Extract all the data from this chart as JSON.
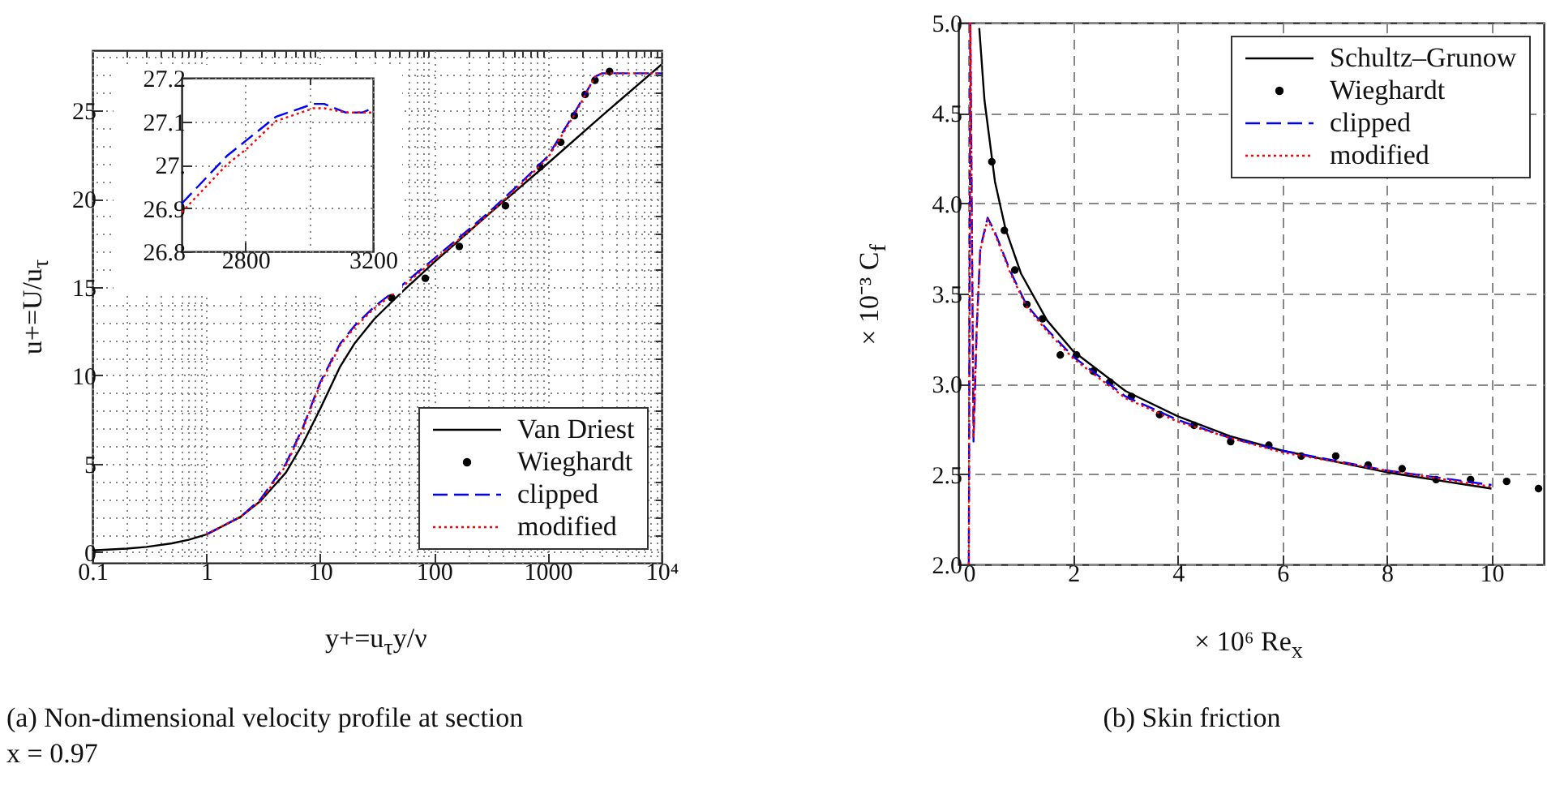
{
  "chart_data": [
    {
      "type": "line",
      "title": "(a) Non-dimensional velocity profile at section x = 0.97",
      "xlabel": "y+=u$_{τ}$y/ν",
      "ylabel": "u+=U/u$_{τ}$",
      "log": "x",
      "xlim": [
        0.1,
        10000
      ],
      "ylim": [
        -0.6,
        28.4
      ],
      "xticks": [
        0.1,
        {
          "value": 0.2,
          "label": null
        },
        {
          "value": 0.3,
          "label": null
        },
        {
          "value": 0.4,
          "label": null
        },
        {
          "value": 0.5,
          "label": null
        },
        {
          "value": 0.6,
          "label": null
        },
        {
          "value": 0.7,
          "label": null
        },
        {
          "value": 0.8,
          "label": null
        },
        {
          "value": 0.9,
          "label": null
        },
        1,
        {
          "value": 2,
          "label": null
        },
        {
          "value": 3,
          "label": null
        },
        {
          "value": 4,
          "label": null
        },
        {
          "value": 5,
          "label": null
        },
        {
          "value": 6,
          "label": null
        },
        {
          "value": 7,
          "label": null
        },
        {
          "value": 8,
          "label": null
        },
        {
          "value": 9,
          "label": null
        },
        10,
        {
          "value": 20,
          "label": null
        },
        {
          "value": 30,
          "label": null
        },
        {
          "value": 40,
          "label": null
        },
        {
          "value": 50,
          "label": null
        },
        {
          "value": 60,
          "label": null
        },
        {
          "value": 70,
          "label": null
        },
        {
          "value": 80,
          "label": null
        },
        {
          "value": 90,
          "label": null
        },
        100,
        {
          "value": 200,
          "label": null
        },
        {
          "value": 300,
          "label": null
        },
        {
          "value": 400,
          "label": null
        },
        {
          "value": 500,
          "label": null
        },
        {
          "value": 600,
          "label": null
        },
        {
          "value": 700,
          "label": null
        },
        {
          "value": 800,
          "label": null
        },
        {
          "value": 900,
          "label": null
        },
        1000,
        {
          "value": 2000,
          "label": null
        },
        {
          "value": 3000,
          "label": null
        },
        {
          "value": 4000,
          "label": null
        },
        {
          "value": 5000,
          "label": null
        },
        {
          "value": 6000,
          "label": null
        },
        {
          "value": 7000,
          "label": null
        },
        {
          "value": 8000,
          "label": null
        },
        {
          "value": 9000,
          "label": null
        },
        {
          "value": 10000,
          "label": "10⁴"
        }
      ],
      "yticks": [
        0,
        {
          "value": 1,
          "label": null
        },
        {
          "value": 2,
          "label": null
        },
        {
          "value": 3,
          "label": null
        },
        {
          "value": 4,
          "label": null
        },
        5,
        {
          "value": 6,
          "label": null
        },
        {
          "value": 7,
          "label": null
        },
        {
          "value": 8,
          "label": null
        },
        {
          "value": 9,
          "label": null
        },
        10,
        {
          "value": 11,
          "label": null
        },
        {
          "value": 12,
          "label": null
        },
        {
          "value": 13,
          "label": null
        },
        {
          "value": 14,
          "label": null
        },
        15,
        {
          "value": 16,
          "label": null
        },
        {
          "value": 17,
          "label": null
        },
        {
          "value": 18,
          "label": null
        },
        {
          "value": 19,
          "label": null
        },
        20,
        {
          "value": 21,
          "label": null
        },
        {
          "value": 22,
          "label": null
        },
        {
          "value": 23,
          "label": null
        },
        {
          "value": 24,
          "label": null
        },
        25,
        {
          "value": 26,
          "label": null
        },
        {
          "value": 27,
          "label": null
        },
        {
          "value": 28,
          "label": null
        }
      ],
      "grid": true,
      "legend": "bottom right",
      "series": [
        {
          "name": "Van Driest",
          "color": "#000000",
          "line_style": "solid",
          "x": [
            0.1,
            0.2,
            0.3,
            0.5,
            0.7,
            1,
            2,
            3,
            5,
            7,
            10,
            15,
            20,
            30,
            50,
            100,
            300,
            1000,
            3000,
            10000
          ],
          "values": [
            0.1,
            0.2,
            0.3,
            0.5,
            0.7,
            1.0,
            2.0,
            2.9,
            4.5,
            6.1,
            8.1,
            10.5,
            11.8,
            13.2,
            14.6,
            16.4,
            19.1,
            22.0,
            24.7,
            27.6
          ]
        },
        {
          "name": "Wieghardt",
          "type": "scatter",
          "color": "#000000",
          "marker": "circle",
          "x": [
            42.5,
            84,
            167,
            425,
            857,
            1300,
            1710,
            2130,
            2600,
            3490
          ],
          "values": [
            14.4,
            15.5,
            17.3,
            19.6,
            21.8,
            23.2,
            24.7,
            25.9,
            26.7,
            27.2
          ]
        },
        {
          "name": "clipped",
          "color": "#0000ff",
          "line_style": "dashed",
          "x": [
            1,
            2,
            3,
            5,
            7,
            10,
            15,
            20,
            30,
            50,
            100,
            300,
            600,
            1000,
            1700,
            2600,
            3000,
            10000
          ],
          "values": [
            1.0,
            2.0,
            3.0,
            5.0,
            7.0,
            9.6,
            11.8,
            12.8,
            13.9,
            15.0,
            16.6,
            19.2,
            21.0,
            22.4,
            24.8,
            26.9,
            27.1,
            27.1
          ]
        },
        {
          "name": "modified",
          "color": "#ff0000",
          "line_style": "dotted",
          "x": [
            1,
            2,
            3,
            5,
            7,
            10,
            15,
            20,
            30,
            50,
            100,
            300,
            600,
            1000,
            1700,
            2600,
            3000,
            10000
          ],
          "values": [
            1.0,
            2.0,
            2.9,
            4.9,
            6.9,
            9.5,
            11.7,
            12.7,
            13.8,
            14.9,
            16.5,
            19.1,
            20.9,
            22.3,
            24.7,
            26.9,
            27.1,
            27.1
          ]
        }
      ]
    },
    {
      "type": "line",
      "xlim": [
        2600,
        3200
      ],
      "ylim": [
        26.8,
        27.2
      ],
      "xticks": [
        2800,
        {
          "value": 3000,
          "label": null
        },
        3200
      ],
      "yticks": [
        26.8,
        26.9,
        {
          "value": 27,
          "label": "27."
        },
        27.1,
        27.2
      ],
      "grid": true,
      "series": [
        {
          "color": "#0000ff",
          "line_style": "dashed",
          "x": [
            2600,
            2742,
            2810,
            2895,
            3013,
            3047,
            3115,
            3166,
            3200
          ],
          "values": [
            26.91,
            27.02,
            27.06,
            27.11,
            27.14,
            27.14,
            27.12,
            27.12,
            27.13
          ]
        },
        {
          "color": "#ff0000",
          "line_style": "dotted",
          "x": [
            2600,
            2742,
            2810,
            2895,
            3013,
            3047,
            3115,
            3166,
            3200
          ],
          "values": [
            26.89,
            27.0,
            27.04,
            27.1,
            27.13,
            27.13,
            27.12,
            27.12,
            27.12
          ]
        }
      ]
    },
    {
      "type": "line",
      "title": "(b) Skin friction",
      "xlabel": "× 10⁶ Re$_{x}$",
      "ylabel": "× 10⁻³ C$_{f}$",
      "xlim": [
        -0.2,
        11
      ],
      "ylim": [
        2,
        5
      ],
      "xticks": [
        0,
        2,
        4,
        6,
        8,
        10
      ],
      "yticks": [
        {
          "value": 2,
          "label": "2.0"
        },
        2.5,
        {
          "value": 3,
          "label": "3.0"
        },
        3.5,
        {
          "value": 4,
          "label": "4.0"
        },
        4.5,
        {
          "value": 5,
          "label": "5.0"
        }
      ],
      "grid": true,
      "legend": "top right",
      "series": [
        {
          "name": "Schultz–Grunow",
          "color": "#000000",
          "line_style": "solid",
          "x": [
            0.2,
            0.3,
            0.5,
            0.7,
            1,
            1.5,
            2,
            3,
            4,
            5,
            6,
            8,
            10
          ],
          "values": [
            4.97,
            4.57,
            4.12,
            3.86,
            3.61,
            3.35,
            3.18,
            2.96,
            2.82,
            2.71,
            2.63,
            2.51,
            2.42
          ]
        },
        {
          "name": "Wieghardt",
          "type": "scatter",
          "color": "#000000",
          "marker": "circle",
          "x": [
            0.44,
            0.68,
            0.88,
            1.11,
            1.41,
            1.75,
            2.06,
            2.38,
            2.7,
            3.11,
            3.65,
            4.31,
            5.01,
            5.74,
            6.36,
            7.02,
            7.64,
            8.29,
            8.94,
            9.6,
            10.29,
            10.9
          ],
          "values": [
            4.23,
            3.85,
            3.63,
            3.44,
            3.36,
            3.16,
            3.16,
            3.07,
            3.01,
            2.93,
            2.83,
            2.77,
            2.68,
            2.66,
            2.6,
            2.6,
            2.55,
            2.53,
            2.47,
            2.47,
            2.46,
            2.42
          ]
        },
        {
          "name": "clipped",
          "color": "#0000ff",
          "line_style": "dashed",
          "x": [
            0,
            0.03,
            0.09,
            0.15,
            0.22,
            0.36,
            0.5,
            0.8,
            1.1,
            1.5,
            2,
            3,
            4,
            5,
            6,
            8,
            10
          ],
          "values": [
            2.0,
            5.0,
            2.68,
            3.3,
            3.75,
            3.92,
            3.84,
            3.62,
            3.44,
            3.3,
            3.15,
            2.93,
            2.8,
            2.7,
            2.63,
            2.52,
            2.44
          ]
        },
        {
          "name": "modified",
          "color": "#ff0000",
          "line_style": "dotted",
          "x": [
            0,
            0.03,
            0.09,
            0.15,
            0.22,
            0.36,
            0.5,
            0.8,
            1.1,
            1.5,
            2,
            3,
            4,
            5,
            6,
            8,
            10
          ],
          "values": [
            2.0,
            5.0,
            2.7,
            3.3,
            3.74,
            3.91,
            3.83,
            3.61,
            3.43,
            3.29,
            3.14,
            2.92,
            2.79,
            2.7,
            2.62,
            2.52,
            2.43
          ]
        }
      ]
    }
  ]
}
